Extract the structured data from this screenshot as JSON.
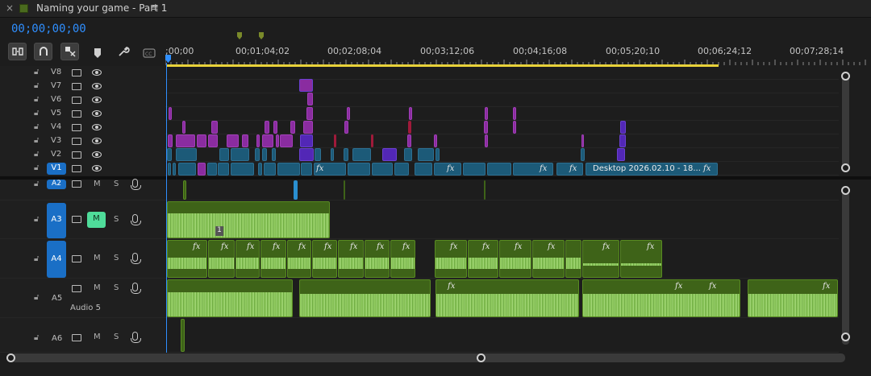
{
  "tab": {
    "close_glyph": "×",
    "title": "Naming your game - Part 1",
    "menu_glyph": "≡"
  },
  "timecode": "00;00;00;00",
  "toolbar": {
    "tools": [
      "insert-sequence-as-nest-icon",
      "snap-icon",
      "linked-selection-icon",
      "add-marker-icon",
      "wrench-icon",
      "captions-icon"
    ]
  },
  "ruler": {
    "labels": [
      ";00;00",
      "00;01;04;02",
      "00;02;08;04",
      "00;03;12;06",
      "00;04;16;08",
      "00;05;20;10",
      "00;06;24;12",
      "00;07;28;14"
    ]
  },
  "video_tracks": [
    {
      "name": "V8"
    },
    {
      "name": "V7"
    },
    {
      "name": "V6"
    },
    {
      "name": "V5"
    },
    {
      "name": "V4"
    },
    {
      "name": "V3"
    },
    {
      "name": "V2"
    },
    {
      "name": "V1",
      "targeted": true
    }
  ],
  "audio_tracks": [
    {
      "name": "A2",
      "targeted": true,
      "m": "M",
      "s": "S"
    },
    {
      "name": "A3",
      "targeted": true,
      "m": "M",
      "s": "S",
      "muted": true
    },
    {
      "name": "A4",
      "targeted": true,
      "m": "M",
      "s": "S"
    },
    {
      "name": "A5",
      "targeted": false,
      "m": "M",
      "s": "S",
      "label": "Audio 5"
    },
    {
      "name": "A6",
      "targeted": false,
      "m": "M",
      "s": "S"
    }
  ],
  "clips": {
    "v1_label": "Desktop 2026.02.10 - 18...",
    "fx": "fx",
    "a3_badge": "1"
  },
  "colors": {
    "accent": "#2f8fff",
    "video_clip": "#1c5a78",
    "pink_clip": "#8a2ca0",
    "purple_clip": "#5227b6",
    "audio_clip": "#3e6318",
    "waveform": "#9bd36b",
    "workarea": "#e8d23a",
    "mute_on": "#4fdc9a"
  }
}
